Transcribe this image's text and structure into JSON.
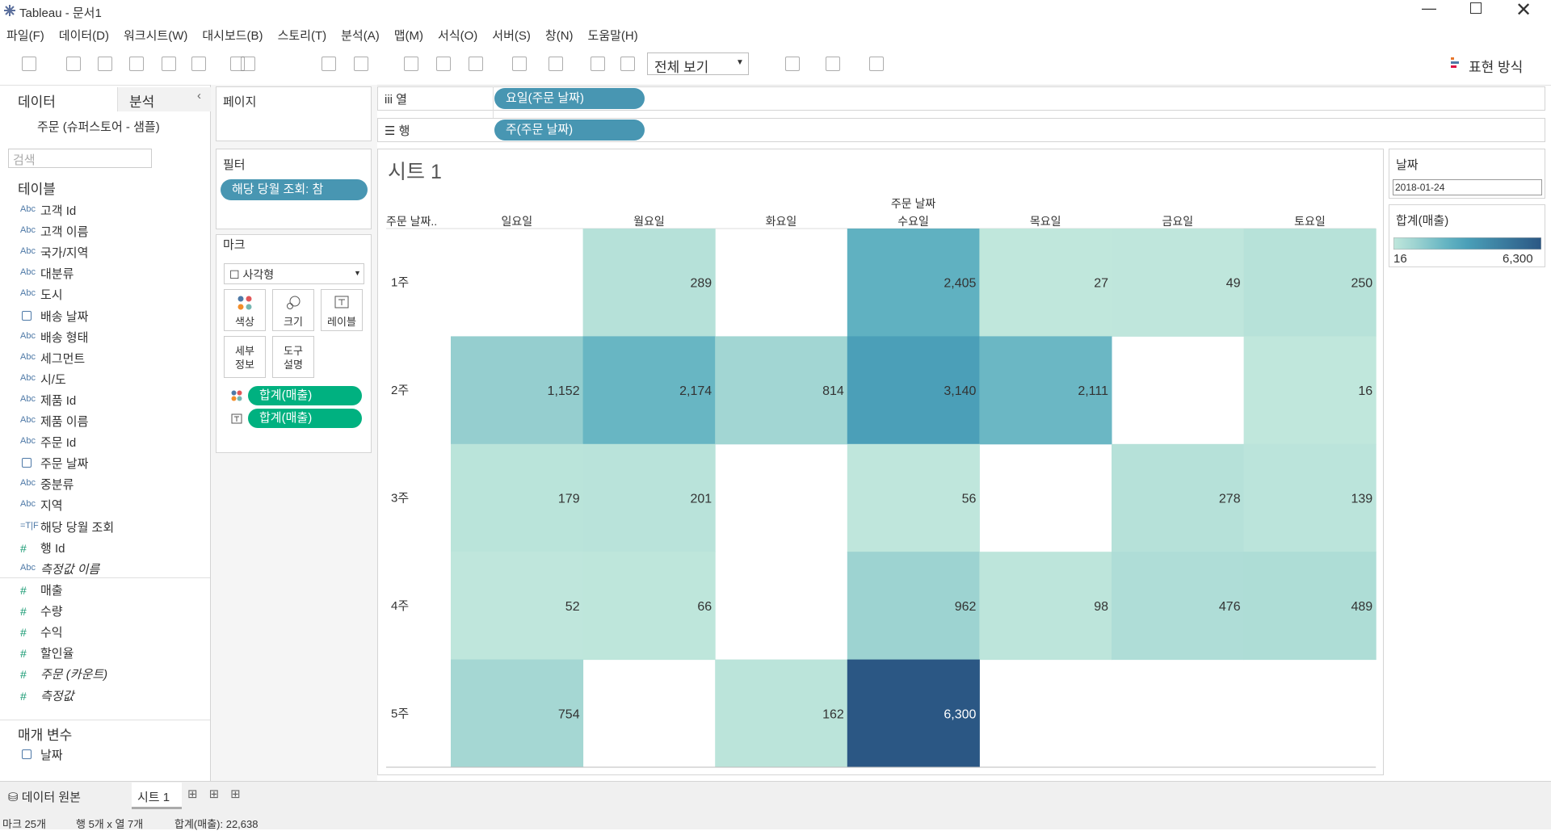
{
  "window": {
    "title": "Tableau - 문서1"
  },
  "menu": [
    "파일(F)",
    "데이터(D)",
    "워크시트(W)",
    "대시보드(B)",
    "스토리(T)",
    "분석(A)",
    "맵(M)",
    "서식(O)",
    "서버(S)",
    "창(N)",
    "도움말(H)"
  ],
  "toolbar": {
    "view": "전체 보기",
    "show_me": "표현 방식"
  },
  "data_pane": {
    "tabs": [
      "데이터",
      "분석"
    ],
    "source": "주문 (슈퍼스토어 - 샘플)",
    "search": "검색",
    "tables_heading": "테이블",
    "dimensions": [
      {
        "icon": "Abc",
        "name": "고객 Id"
      },
      {
        "icon": "Abc",
        "name": "고객 이름"
      },
      {
        "icon": "Abc",
        "name": "국가/지역"
      },
      {
        "icon": "Abc",
        "name": "대분류"
      },
      {
        "icon": "Abc",
        "name": "도시"
      },
      {
        "name": "배송 날짜"
      },
      {
        "icon": "Abc",
        "name": "배송 형태"
      },
      {
        "icon": "Abc",
        "name": "세그먼트"
      },
      {
        "icon": "Abc",
        "name": "시/도"
      },
      {
        "icon": "Abc",
        "name": "제품 Id"
      },
      {
        "icon": "Abc",
        "name": "제품 이름"
      },
      {
        "icon": "Abc",
        "name": "주문 Id"
      },
      {
        "name": "주문 날짜"
      },
      {
        "icon": "Abc",
        "name": "중분류"
      },
      {
        "icon": "Abc",
        "name": "지역"
      },
      {
        "icon": "=T|F",
        "name": "해당 당월 조회"
      },
      {
        "icon": "#",
        "name": "행 Id"
      },
      {
        "icon": "Abc",
        "name": "측정값 이름",
        "italic": true
      }
    ],
    "measures": [
      {
        "icon": "#",
        "name": "매출"
      },
      {
        "icon": "#",
        "name": "수량"
      },
      {
        "icon": "#",
        "name": "수익"
      },
      {
        "icon": "#",
        "name": "할인율"
      },
      {
        "icon": "#",
        "name": "주문 (카운트)",
        "italic": true
      },
      {
        "icon": "#",
        "name": "측정값",
        "italic": true
      }
    ],
    "parameters_heading": "매개 변수",
    "parameters": [
      {
        "name": "날짜"
      }
    ]
  },
  "pages": {
    "title": "페이지"
  },
  "filters": {
    "title": "필터",
    "pills": [
      "해당 당월 조회: 참"
    ]
  },
  "marks": {
    "title": "마크",
    "type": "사각형",
    "buttons": [
      "색상",
      "크기",
      "레이블",
      "세부 정보",
      "도구 설명"
    ],
    "pills": [
      "합계(매출)",
      "합계(매출)"
    ]
  },
  "shelves": {
    "columns": {
      "label": "열",
      "pill": "요일(주문 날짜)"
    },
    "rows": {
      "label": "행",
      "pill": "주(주문 날짜)"
    }
  },
  "sheet": {
    "title": "시트 1",
    "column_header": "주문 날짜",
    "row_header": "주문 날짜..",
    "columns": [
      "일요일",
      "월요일",
      "화요일",
      "수요일",
      "목요일",
      "금요일",
      "토요일"
    ],
    "rows": [
      "1주",
      "2주",
      "3주",
      "4주",
      "5주"
    ],
    "values": [
      [
        null,
        289,
        null,
        2405,
        27,
        49,
        250
      ],
      [
        1152,
        2174,
        814,
        3140,
        2111,
        null,
        16
      ],
      [
        179,
        201,
        null,
        56,
        null,
        278,
        139
      ],
      [
        52,
        66,
        null,
        962,
        98,
        476,
        489
      ],
      [
        754,
        null,
        162,
        6300,
        null,
        null,
        null
      ]
    ],
    "value_labels": [
      [
        null,
        "289",
        null,
        "2,405",
        "27",
        "49",
        "250"
      ],
      [
        "1,152",
        "2,174",
        "814",
        "3,140",
        "2,111",
        null,
        "16"
      ],
      [
        "179",
        "201",
        null,
        "56",
        null,
        "278",
        "139"
      ],
      [
        "52",
        "66",
        null,
        "962",
        "98",
        "476",
        "489"
      ],
      [
        "754",
        null,
        "162",
        "6,300",
        null,
        null,
        null
      ]
    ]
  },
  "legend": {
    "parameter_title": "날짜",
    "parameter_value": "2018-01-24",
    "title": "합계(매출)",
    "min": 16,
    "max": 6300,
    "max_label": "6,300"
  },
  "tabs": {
    "source": "데이터 원본",
    "sheet": "시트 1"
  },
  "status": {
    "marks": "마크 25개",
    "dims": "행 5개 x 열 7개",
    "sum": "합계(매출): 22,638"
  }
}
